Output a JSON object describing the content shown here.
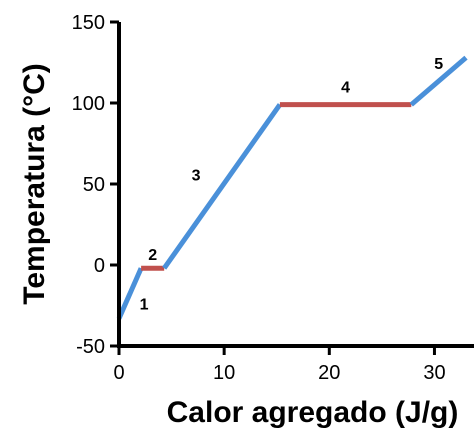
{
  "chart_data": {
    "type": "line",
    "title": "",
    "xlabel": "Calor agregado (J/g)",
    "ylabel": "Temperatura (°C)",
    "xlim": [
      0,
      33
    ],
    "ylim": [
      -50,
      150
    ],
    "xticks": [
      0,
      10,
      20,
      30
    ],
    "yticks": [
      -50,
      0,
      50,
      100,
      150
    ],
    "grid": false,
    "segments": [
      {
        "label": "1",
        "phase": "heating",
        "color": "#4a90d9",
        "points": [
          [
            0,
            -33
          ],
          [
            2.1,
            -2
          ]
        ]
      },
      {
        "label": "2",
        "phase": "plateau",
        "color": "#c0504d",
        "points": [
          [
            2.1,
            -2
          ],
          [
            4.3,
            -2
          ]
        ]
      },
      {
        "label": "3",
        "phase": "heating",
        "color": "#4a90d9",
        "points": [
          [
            4.3,
            -2
          ],
          [
            15.3,
            99
          ]
        ]
      },
      {
        "label": "4",
        "phase": "plateau",
        "color": "#c0504d",
        "points": [
          [
            15.3,
            99
          ],
          [
            27.8,
            99
          ]
        ]
      },
      {
        "label": "5",
        "phase": "heating",
        "color": "#4a90d9",
        "points": [
          [
            27.8,
            99
          ],
          [
            33,
            128
          ]
        ]
      }
    ]
  }
}
